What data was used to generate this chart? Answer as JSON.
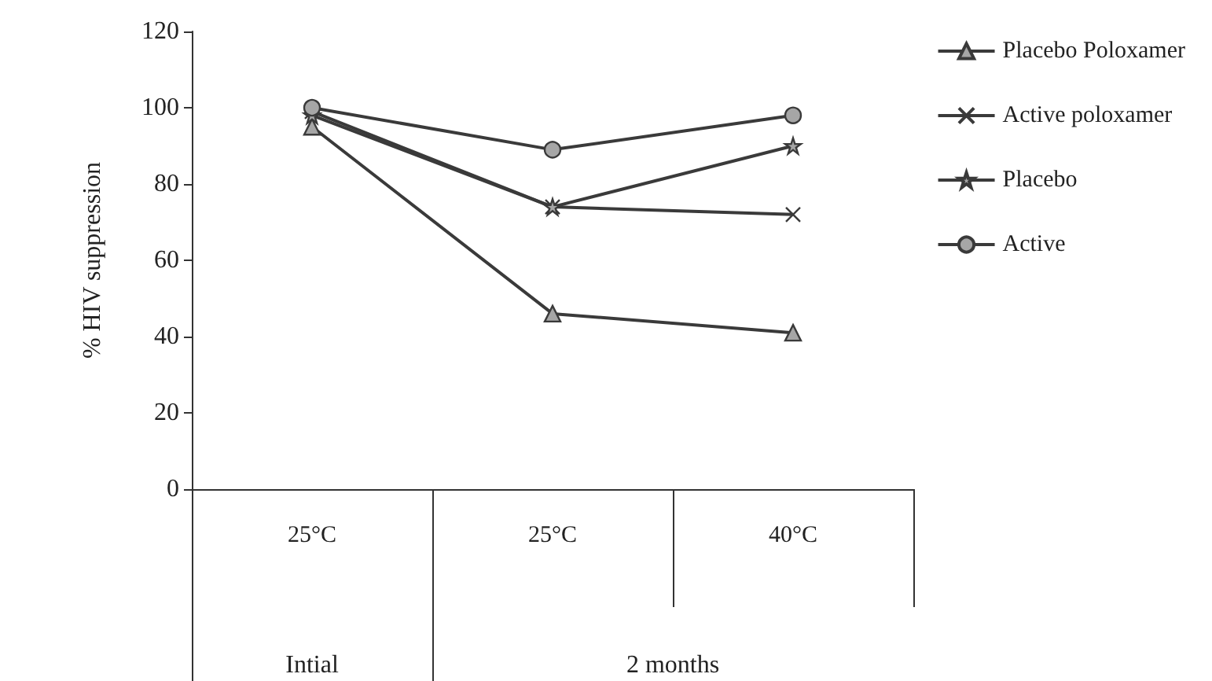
{
  "chart_data": {
    "type": "line",
    "ylabel": "% HIV suppression",
    "categories": [
      "25°C",
      "25°C",
      "40°C"
    ],
    "series": [
      {
        "name": "Placebo Poloxamer",
        "color": "#3a3a3a",
        "marker": "triangle",
        "values": [
          95,
          46,
          41
        ]
      },
      {
        "name": "Active poloxamer",
        "color": "#3a3a3a",
        "marker": "cross",
        "values": [
          99,
          74,
          72
        ]
      },
      {
        "name": "Placebo",
        "color": "#3a3a3a",
        "marker": "star",
        "values": [
          98,
          74,
          90
        ]
      },
      {
        "name": "Active",
        "color": "#3a3a3a",
        "marker": "circle",
        "values": [
          100,
          89,
          98
        ]
      }
    ],
    "ylim": [
      0,
      120
    ],
    "yticks": [
      0,
      20,
      40,
      60,
      80,
      100,
      120
    ],
    "grid": false,
    "legend": "right",
    "annotations": [
      "Intial",
      "2 months"
    ]
  }
}
